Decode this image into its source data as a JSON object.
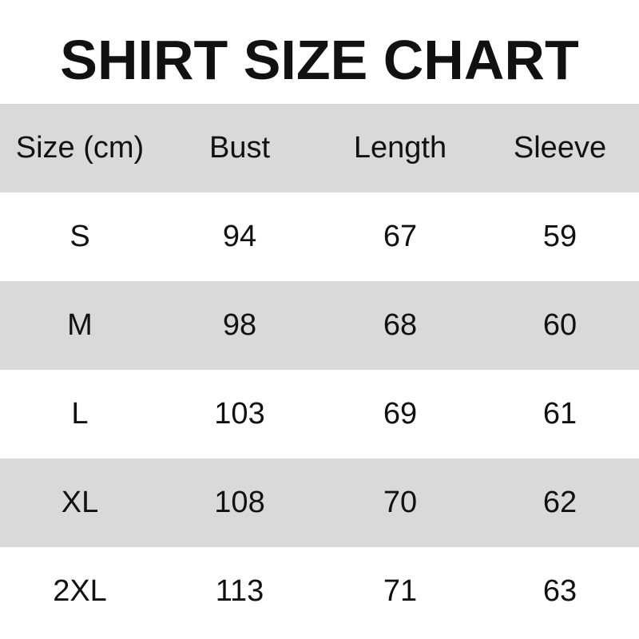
{
  "title": "SHIRT SIZE CHART",
  "colors": {
    "stripe": "#d9d9d9",
    "text": "#111111"
  },
  "table": {
    "headers": [
      "Size (cm)",
      "Bust",
      "Length",
      "Sleeve"
    ],
    "rows": [
      [
        "S",
        "94",
        "67",
        "59"
      ],
      [
        "M",
        "98",
        "68",
        "60"
      ],
      [
        "L",
        "103",
        "69",
        "61"
      ],
      [
        "XL",
        "108",
        "70",
        "62"
      ],
      [
        "2XL",
        "113",
        "71",
        "63"
      ]
    ]
  }
}
